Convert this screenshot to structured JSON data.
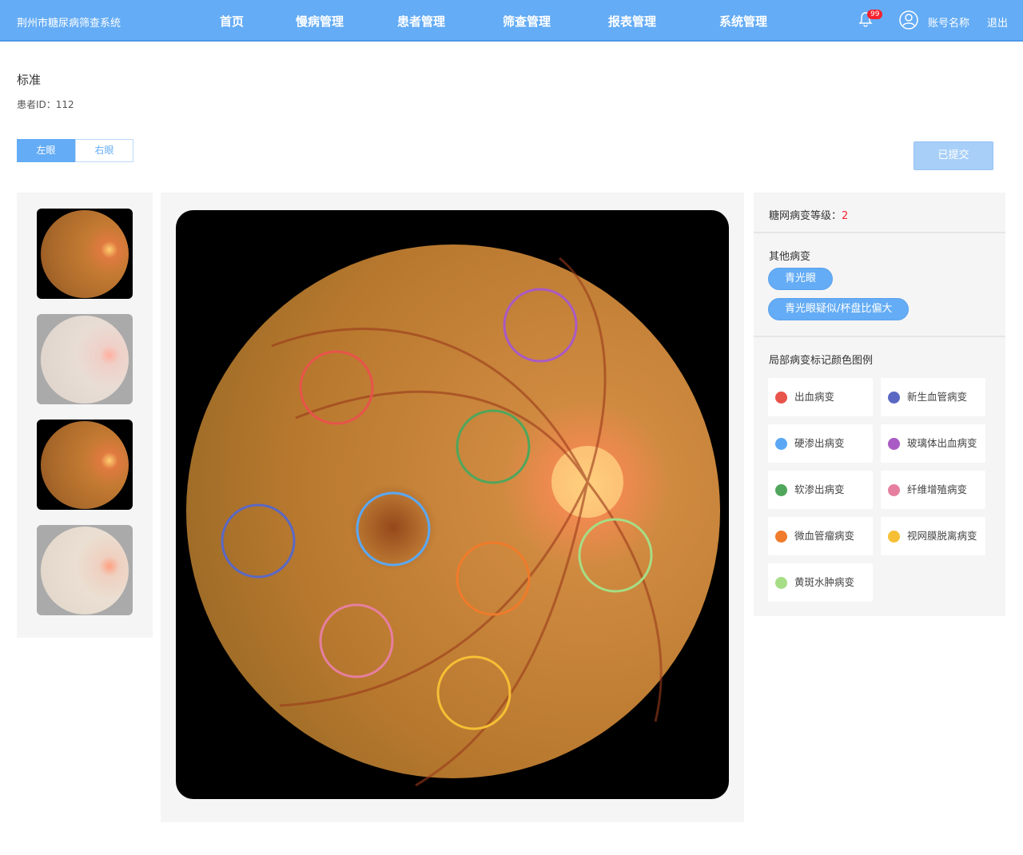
{
  "header": {
    "title": "荆州市糖尿病筛查系统",
    "nav": [
      "首页",
      "慢病管理",
      "患者管理",
      "筛查管理",
      "报表管理",
      "系统管理"
    ],
    "badge": "99",
    "account": "账号名称",
    "logout": "退出"
  },
  "page": {
    "title": "标准",
    "patient_id": "患者ID：112",
    "eye_tabs": [
      "左眼",
      "右眼"
    ],
    "active_eye": "左眼",
    "submit": "已提交"
  },
  "side": {
    "grade_label": "糖网病变等级：",
    "grade_value": "2",
    "other_label": "其他病变",
    "other_tags": [
      "青光眼",
      "青光眼疑似/杯盘比偏大"
    ],
    "legend_title": "局部病变标记颜色图例",
    "legend": [
      {
        "label": "出血病变",
        "color": "#e8534a"
      },
      {
        "label": "新生血管病变",
        "color": "#5a68c4"
      },
      {
        "label": "硬渗出病变",
        "color": "#5aa8f5"
      },
      {
        "label": "玻璃体出血病变",
        "color": "#a95ac4"
      },
      {
        "label": "软渗出病变",
        "color": "#4fa65c"
      },
      {
        "label": "纤维增殖病变",
        "color": "#e67f9f"
      },
      {
        "label": "微血管瘤病变",
        "color": "#f07b2b"
      },
      {
        "label": "视网膜脱离病变",
        "color": "#f6bf35"
      },
      {
        "label": "黄斑水肿病变",
        "color": "#a6dd85"
      }
    ]
  },
  "markers": [
    {
      "type": "玻璃体出血病变",
      "color": "#a95ac4"
    },
    {
      "type": "出血病变",
      "color": "#e8534a"
    },
    {
      "type": "软渗出病变",
      "color": "#4fa65c"
    },
    {
      "type": "新生血管病变",
      "color": "#5a68c4"
    },
    {
      "type": "硬渗出病变",
      "color": "#5aa8f5"
    },
    {
      "type": "微血管瘤病变",
      "color": "#f07b2b"
    },
    {
      "type": "黄斑水肿病变",
      "color": "#a6dd85"
    },
    {
      "type": "纤维增殖病变",
      "color": "#e67f9f"
    },
    {
      "type": "视网膜脱离病变",
      "color": "#f6bf35"
    }
  ]
}
